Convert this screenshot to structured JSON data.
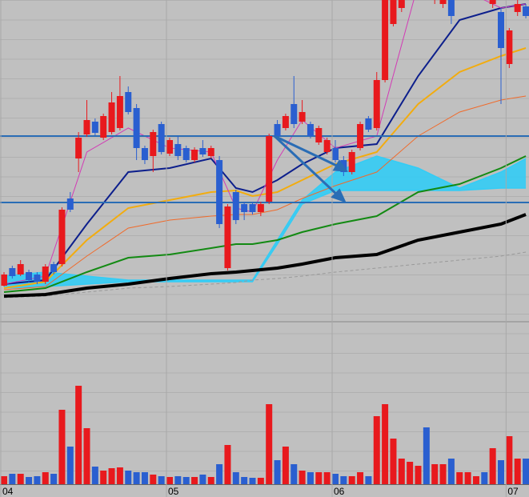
{
  "chart_data": {
    "type": "candlestick",
    "up_color": "#e8191d",
    "down_color": "#2a5fd0",
    "open": [
      43,
      65,
      57,
      60,
      57,
      48,
      70,
      70,
      152,
      202,
      232,
      248,
      228,
      235,
      240,
      285,
      265,
      215,
      205,
      245,
      208,
      220,
      215,
      200,
      215,
      205,
      200,
      65,
      160,
      145,
      145,
      135,
      148,
      245,
      240,
      270,
      248,
      245,
      222,
      210,
      215,
      200,
      185,
      215,
      252,
      240,
      300,
      370,
      390,
      405,
      410,
      425,
      400,
      395,
      400,
      405,
      410,
      405,
      420,
      395,
      385,
      320,
      385,
      392
    ],
    "high": [
      60,
      68,
      75,
      63,
      60,
      70,
      73,
      141,
      160,
      235,
      275,
      252,
      258,
      285,
      305,
      292,
      270,
      218,
      238,
      248,
      228,
      230,
      218,
      216,
      225,
      218,
      205,
      145,
      163,
      148,
      148,
      148,
      233,
      250,
      258,
      305,
      275,
      248,
      243,
      228,
      225,
      205,
      213,
      248,
      255,
      310,
      403,
      403,
      415,
      425,
      435,
      430,
      425,
      420,
      405,
      425,
      432,
      430,
      425,
      415,
      390,
      365,
      400,
      395
    ],
    "low": [
      42,
      52,
      55,
      47,
      45,
      45,
      57,
      67,
      135,
      185,
      229,
      230,
      225,
      232,
      237,
      257,
      200,
      195,
      185,
      207,
      205,
      200,
      197,
      197,
      204,
      202,
      115,
      62,
      120,
      125,
      132,
      130,
      145,
      227,
      237,
      240,
      245,
      227,
      219,
      207,
      197,
      180,
      182,
      212,
      235,
      237,
      297,
      367,
      385,
      400,
      405,
      400,
      395,
      390,
      370,
      400,
      405,
      400,
      400,
      390,
      270,
      315,
      380,
      377
    ],
    "close": [
      57,
      55,
      70,
      50,
      48,
      67,
      60,
      138,
      138,
      228,
      250,
      234,
      255,
      272,
      280,
      260,
      215,
      200,
      235,
      210,
      225,
      205,
      200,
      213,
      207,
      215,
      120,
      142,
      125,
      135,
      135,
      145,
      230,
      230,
      255,
      245,
      260,
      230,
      240,
      225,
      200,
      185,
      210,
      245,
      238,
      300,
      400,
      400,
      410,
      420,
      430,
      405,
      420,
      415,
      380,
      420,
      430,
      425,
      405,
      410,
      340,
      362,
      395,
      380
    ],
    "ylim": [
      0,
      400
    ],
    "xticks": [
      {
        "value": 0,
        "label": "04"
      },
      {
        "value": 20,
        "label": "05"
      },
      {
        "value": 40,
        "label": "06"
      },
      {
        "value": 61,
        "label": "07"
      }
    ],
    "volume": {
      "ylim": [
        0,
        200
      ],
      "values": [
        10,
        13,
        13,
        9,
        10,
        15,
        13,
        93,
        47,
        123,
        70,
        22,
        17,
        20,
        21,
        17,
        15,
        15,
        12,
        10,
        9,
        10,
        9,
        9,
        12,
        9,
        25,
        49,
        15,
        9,
        8,
        8,
        100,
        30,
        47,
        25,
        17,
        15,
        15,
        15,
        13,
        10,
        10,
        15,
        10,
        85,
        100,
        57,
        32,
        28,
        23,
        71,
        25,
        25,
        32,
        15,
        15,
        10,
        15,
        45,
        30,
        60,
        32,
        32
      ]
    },
    "hlines": {
      "color": "#2a6db5",
      "values": [
        230,
        147
      ]
    },
    "cloud": {
      "color": "#33ccf5",
      "x": [
        0,
        5,
        10,
        15,
        20,
        25,
        28,
        30,
        33,
        36,
        40,
        45,
        50,
        55,
        60,
        63
      ],
      "span_a": [
        55,
        60,
        55,
        50,
        50,
        50,
        50,
        50,
        100,
        150,
        185,
        205,
        190,
        165,
        185,
        202
      ],
      "span_b": [
        40,
        42,
        45,
        48,
        48,
        48,
        48,
        48,
        95,
        145,
        162,
        162,
        162,
        162,
        165,
        165
      ]
    },
    "lines": [
      {
        "color": "#999999",
        "width": 1,
        "dash": true,
        "x": [
          0,
          5,
          10,
          15,
          20,
          25,
          28,
          30,
          33,
          36,
          40,
          45,
          50,
          55,
          60,
          63
        ],
        "values": [
          28,
          30,
          35,
          40,
          42,
          45,
          47,
          50,
          52,
          55,
          60,
          65,
          70,
          75,
          80,
          85
        ]
      },
      {
        "color": "#000000",
        "width": 4,
        "dash": false,
        "x": [
          0,
          5,
          10,
          15,
          20,
          25,
          28,
          30,
          33,
          36,
          40,
          45,
          50,
          55,
          60,
          63
        ],
        "values": [
          30,
          32,
          40,
          45,
          52,
          58,
          60,
          62,
          65,
          70,
          78,
          82,
          100,
          110,
          120,
          132
        ]
      },
      {
        "color": "#138a13",
        "width": 2,
        "dash": false,
        "x": [
          0,
          5,
          10,
          15,
          20,
          25,
          28,
          30,
          33,
          36,
          40,
          45,
          50,
          55,
          60,
          63
        ],
        "values": [
          35,
          40,
          60,
          78,
          82,
          90,
          95,
          95,
          100,
          110,
          120,
          130,
          160,
          170,
          190,
          205
        ]
      },
      {
        "color": "#f06a2a",
        "width": 1,
        "dash": false,
        "x": [
          0,
          5,
          10,
          15,
          20,
          25,
          28,
          30,
          33,
          36,
          40,
          45,
          50,
          55,
          60,
          63
        ],
        "values": [
          38,
          42,
          80,
          115,
          125,
          130,
          132,
          132,
          138,
          152,
          168,
          185,
          230,
          260,
          275,
          280
        ]
      },
      {
        "color": "#f2ac0f",
        "width": 2,
        "dash": false,
        "x": [
          0,
          5,
          10,
          15,
          20,
          25,
          28,
          30,
          33,
          36,
          40,
          45,
          50,
          55,
          60,
          63
        ],
        "values": [
          40,
          48,
          100,
          140,
          150,
          160,
          162,
          155,
          160,
          175,
          195,
          210,
          270,
          310,
          330,
          340
        ]
      },
      {
        "color": "#0d1f8c",
        "width": 2,
        "dash": false,
        "x": [
          0,
          5,
          10,
          15,
          20,
          25,
          28,
          30,
          33,
          36,
          40,
          45,
          50,
          55,
          60,
          63
        ],
        "values": [
          45,
          50,
          120,
          185,
          190,
          202,
          165,
          160,
          175,
          195,
          215,
          220,
          305,
          375,
          390,
          395
        ]
      },
      {
        "color": "#d23bb5",
        "width": 1,
        "dash": false,
        "x": [
          0,
          5,
          10,
          15,
          20,
          25,
          28,
          30,
          33,
          36,
          40,
          45,
          50,
          55,
          60,
          63
        ],
        "values": [
          45,
          55,
          210,
          240,
          215,
          210,
          140,
          135,
          200,
          250,
          215,
          230,
          420,
          415,
          390,
          395
        ]
      }
    ]
  }
}
